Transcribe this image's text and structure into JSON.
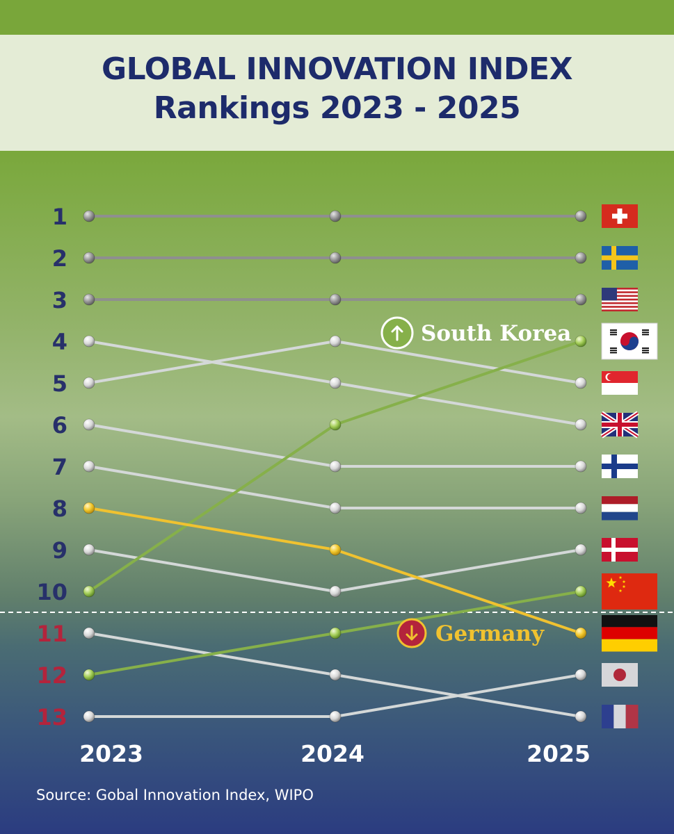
{
  "title": {
    "line1": "GLOBAL INNOVATION INDEX",
    "line2": "Rankings 2023 - 2025"
  },
  "source": "Source: Gobal Innovation Index, WIPO",
  "colors": {
    "neutral_line": "#d4d8d8",
    "top_line": "#8f8f8f",
    "highlight_up": "#86b04a",
    "highlight_down": "#f0c230",
    "rank_top": "#27306a",
    "rank_bottom": "#b3243c",
    "title_text": "#1d2b6b"
  },
  "chart_data": {
    "type": "line",
    "title": "GLOBAL INNOVATION INDEX Rankings 2023 - 2025",
    "x": [
      "2023",
      "2024",
      "2025"
    ],
    "ranks": [
      "1",
      "2",
      "3",
      "4",
      "5",
      "6",
      "7",
      "8",
      "9",
      "10",
      "11",
      "12",
      "13"
    ],
    "ylim": [
      1,
      13
    ],
    "y_inverted": true,
    "cutoff_after_rank": 10,
    "series": [
      {
        "flag": "switzerland",
        "values": [
          1,
          1,
          1
        ],
        "style": "top"
      },
      {
        "flag": "sweden",
        "values": [
          2,
          2,
          2
        ],
        "style": "top"
      },
      {
        "flag": "united-states",
        "values": [
          3,
          3,
          3
        ],
        "style": "top"
      },
      {
        "flag": "south-korea",
        "values": [
          10,
          6,
          4
        ],
        "style": "up"
      },
      {
        "flag": "singapore",
        "values": [
          5,
          4,
          5
        ],
        "style": "neutral"
      },
      {
        "flag": "united-kingdom",
        "values": [
          4,
          5,
          6
        ],
        "style": "neutral"
      },
      {
        "flag": "finland",
        "values": [
          6,
          7,
          7
        ],
        "style": "neutral"
      },
      {
        "flag": "netherlands",
        "values": [
          7,
          8,
          8
        ],
        "style": "neutral"
      },
      {
        "flag": "denmark",
        "values": [
          9,
          10,
          9
        ],
        "style": "neutral"
      },
      {
        "flag": "china",
        "values": [
          12,
          11,
          10
        ],
        "style": "up"
      },
      {
        "flag": "germany",
        "values": [
          8,
          9,
          11
        ],
        "style": "down"
      },
      {
        "flag": "japan",
        "values": [
          13,
          13,
          12
        ],
        "style": "neutral"
      },
      {
        "flag": "france",
        "values": [
          11,
          12,
          13
        ],
        "style": "neutral"
      }
    ],
    "annotations": [
      {
        "text": "South Korea",
        "direction": "up",
        "icon": "arrow-up-icon",
        "year": "2025",
        "rank": 4
      },
      {
        "text": "Germany",
        "direction": "down",
        "icon": "arrow-down-icon",
        "year": "2025",
        "rank": 11
      }
    ]
  }
}
